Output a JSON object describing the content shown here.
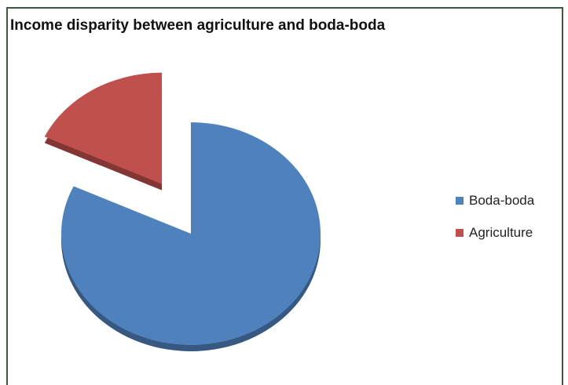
{
  "chart_data": {
    "type": "pie",
    "title": "Income disparity between agriculture and boda-boda",
    "slices": [
      {
        "label": "Boda-boda",
        "value": 82,
        "color": "#4f81bd"
      },
      {
        "label": "Agriculture",
        "value": 18,
        "color": "#c0504d"
      }
    ],
    "exploded": "Agriculture",
    "legend_position": "right",
    "style": "3d"
  },
  "legend": {
    "items": [
      {
        "label": "Boda-boda",
        "color": "#4f81bd"
      },
      {
        "label": "Agriculture",
        "color": "#c0504d"
      }
    ]
  }
}
